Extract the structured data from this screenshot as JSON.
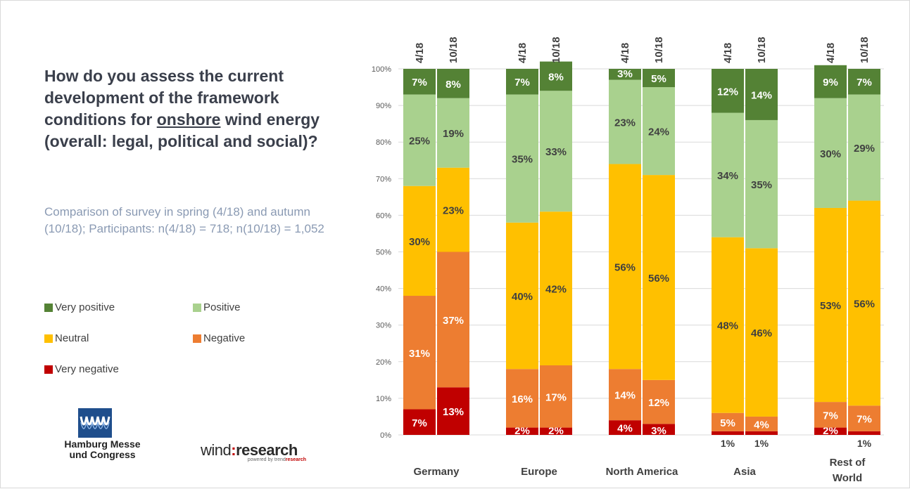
{
  "question": {
    "before": "How do you assess the current development of the framework conditions for ",
    "underlined": "onshore",
    "after": " wind energy (overall: legal, political and social)?"
  },
  "subtitle": "Comparison of survey in spring (4/18) and autumn (10/18); Participants: n(4/18) = 718; n(10/18) = 1,052",
  "logos": {
    "hmc_line1": "Hamburg Messe",
    "hmc_line2": "und Congress",
    "wr_a": "wind",
    "wr_colon": ":",
    "wr_b": "research",
    "wr_sub_a": "powered by trend",
    "wr_sub_b": "research"
  },
  "colors": {
    "very_positive": "#548235",
    "positive": "#a9d18e",
    "neutral": "#ffc000",
    "negative": "#ed7d31",
    "very_negative": "#c00000",
    "grid": "#d9d9d9",
    "axis_text": "#595959",
    "label_dark": "#404040",
    "label_light": "#ffffff"
  },
  "chart_data": {
    "type": "bar",
    "stacked": true,
    "ylim": [
      0,
      100
    ],
    "yticks": [
      "0%",
      "10%",
      "20%",
      "30%",
      "40%",
      "50%",
      "60%",
      "70%",
      "80%",
      "90%",
      "100%"
    ],
    "grid": true,
    "legend_position": "left",
    "series_order": [
      "Very negative",
      "Negative",
      "Neutral",
      "Positive",
      "Very positive"
    ],
    "legend": [
      "Very positive",
      "Positive",
      "Neutral",
      "Negative",
      "Very negative"
    ],
    "groups": [
      {
        "name": "Germany",
        "bars": [
          {
            "label": "4/18",
            "values": [
              7,
              31,
              30,
              25,
              7
            ],
            "labels": [
              "7%",
              "31%",
              "30%",
              "25%",
              "7%"
            ]
          },
          {
            "label": "10/18",
            "values": [
              13,
              37,
              23,
              19,
              8
            ],
            "labels": [
              "13%",
              "37%",
              "23%",
              "19%",
              "8%"
            ]
          }
        ]
      },
      {
        "name": "Europe",
        "bars": [
          {
            "label": "4/18",
            "values": [
              2,
              16,
              40,
              35,
              7
            ],
            "labels": [
              "2%",
              "16%",
              "40%",
              "35%",
              "7%"
            ]
          },
          {
            "label": "10/18",
            "values": [
              2,
              17,
              42,
              33,
              8
            ],
            "labels": [
              "2%",
              "17%",
              "42%",
              "33%",
              "8%"
            ]
          }
        ]
      },
      {
        "name": "North America",
        "bars": [
          {
            "label": "4/18",
            "values": [
              4,
              14,
              56,
              23,
              3
            ],
            "labels": [
              "4%",
              "14%",
              "56%",
              "23%",
              "3%"
            ]
          },
          {
            "label": "10/18",
            "values": [
              3,
              12,
              56,
              24,
              5
            ],
            "labels": [
              "3%",
              "12%",
              "56%",
              "24%",
              "5%"
            ]
          }
        ]
      },
      {
        "name": "Asia",
        "bars": [
          {
            "label": "4/18",
            "values": [
              1,
              5,
              48,
              34,
              12
            ],
            "labels": [
              "1%",
              "5%",
              "48%",
              "34%",
              "12%"
            ]
          },
          {
            "label": "10/18",
            "values": [
              1,
              4,
              46,
              35,
              14
            ],
            "labels": [
              "1%",
              "4%",
              "46%",
              "35%",
              "14%"
            ]
          }
        ]
      },
      {
        "name": "Rest of World",
        "name_lines": [
          "Rest of",
          "World"
        ],
        "bars": [
          {
            "label": "4/18",
            "values": [
              2,
              7,
              53,
              30,
              9
            ],
            "labels": [
              "2%",
              "7%",
              "53%",
              "30%",
              "9%"
            ]
          },
          {
            "label": "10/18",
            "values": [
              1,
              7,
              56,
              29,
              7
            ],
            "labels": [
              "1%",
              "7%",
              "56%",
              "29%",
              "7%"
            ]
          }
        ]
      }
    ]
  }
}
